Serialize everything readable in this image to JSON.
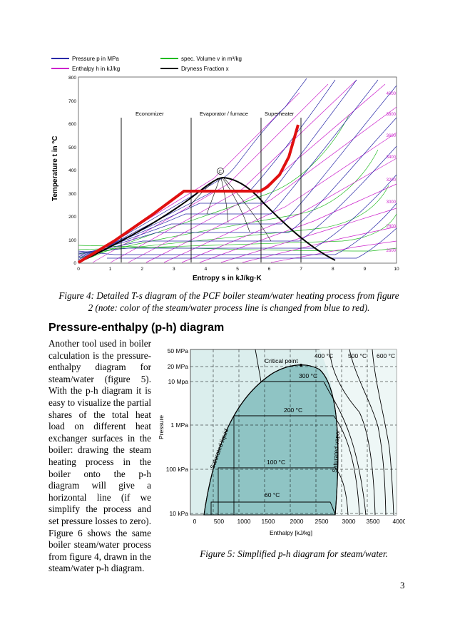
{
  "ts_chart": {
    "legend": {
      "pressure": "Pressure p in MPa",
      "enthalpy": "Enthalpy h in kJ/kg",
      "volume": "spec. Volume v in m³/kg",
      "dryness": "Dryness Fraction x"
    },
    "xlabel": "Entropy s in kJ/kg·K",
    "ylabel": "Temperature t in °C",
    "xticks": [
      "0",
      "1",
      "2",
      "3",
      "4",
      "5",
      "6",
      "7",
      "8",
      "9",
      "10"
    ],
    "yticks": [
      "0",
      "100",
      "200",
      "300",
      "400",
      "500",
      "600",
      "700",
      "800"
    ],
    "enthalpy_ticks": [
      "4000",
      "3800",
      "3600",
      "3400",
      "3200",
      "3000",
      "2800",
      "2600"
    ],
    "regions": {
      "economizer": "Economizer",
      "evaporator": "Evaporator / furnace",
      "superheater": "Superheater"
    },
    "critical_label": "C",
    "colors": {
      "pressure": "#2a2aa8",
      "enthalpy": "#cc22cc",
      "volume": "#22bb22",
      "dryness": "#000000",
      "process": "#e01010"
    }
  },
  "figure4_caption": "Figure 4: Detailed T-s diagram of the PCF boiler steam/water heating process from figure 2 (note: color of the steam/water process line is changed from blue to red).",
  "section_heading": "Pressure-enthalpy (p-h) diagram",
  "paragraph": "Another tool used in boiler calculation is the pressure-enthalpy diagram for steam/water (figure 5). With the p-h diagram it is easy to visualize the partial shares of the total heat load on different heat exchanger surfaces in the boiler: drawing the steam heating process in the boiler onto the p-h diagram will give a horizontal line (if we simplify the process and set pressure losses to zero). Figure 6 shows the same boiler steam/water process from figure 4, drawn in the steam/water p-h diagram.",
  "ph_chart": {
    "ylabel": "Pressure",
    "xlabel": "Enthalpy [kJ/kg]",
    "yticks": [
      "50 MPa",
      "20 MPa",
      "10 Mpa",
      "1 MPa",
      "100 kPa",
      "10 kPa"
    ],
    "xticks": [
      "0",
      "500",
      "1000",
      "1500",
      "2000",
      "2500",
      "3000",
      "3500",
      "4000"
    ],
    "temp_labels": [
      "400 °C",
      "500 °C",
      "600 °C",
      "300 °C",
      "200 °C",
      "100 °C",
      "60 °C"
    ],
    "critical_point": "Critical point",
    "saturated_liquid": "Saturated liquid",
    "saturated_vapor": "Saturated vapor",
    "colors": {
      "dome": "#8fc4c4",
      "outside": "#dbeeed",
      "right": "#eef7f6"
    }
  },
  "figure5_caption": "Figure 5: Simplified p-h diagram for steam/water.",
  "page_number": "3"
}
